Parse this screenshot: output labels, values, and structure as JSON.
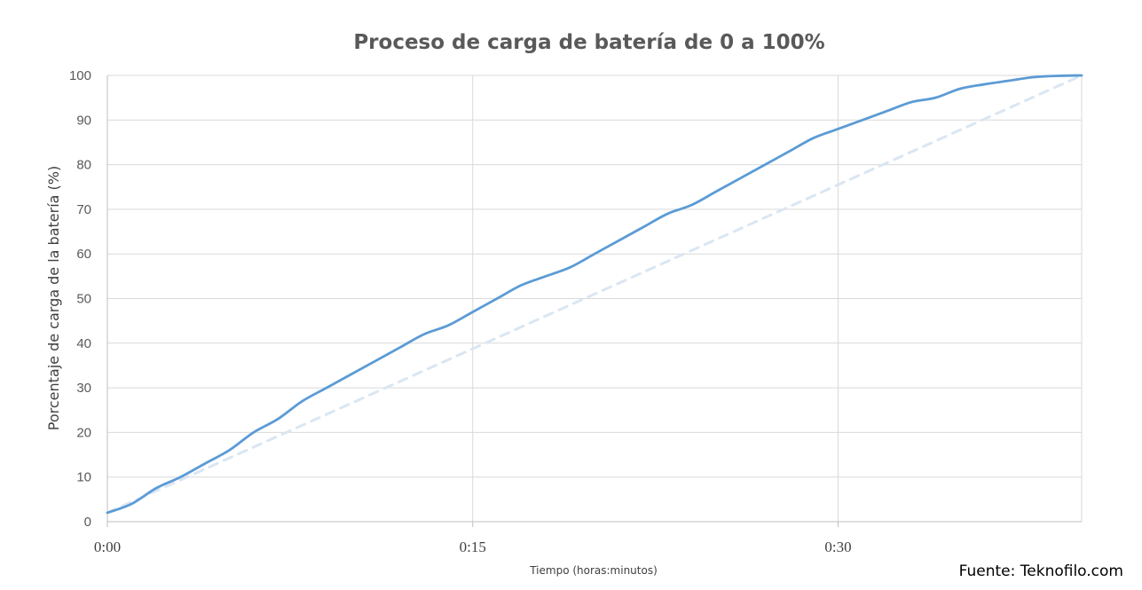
{
  "chart_data": {
    "type": "line",
    "title": "Proceso de carga de batería de 0 a 100%",
    "xlabel": "Tiempo (horas:minutos)",
    "ylabel": "Porcentaje de carga de la batería (%)",
    "x_unit": "minutes",
    "xlim": [
      0,
      40
    ],
    "ylim": [
      0,
      100
    ],
    "x_ticks": [
      0,
      15,
      30
    ],
    "x_tick_labels": [
      "0:00",
      "0:15",
      "0:30"
    ],
    "y_ticks": [
      0,
      10,
      20,
      30,
      40,
      50,
      60,
      70,
      80,
      90,
      100
    ],
    "y_tick_labels": [
      "0",
      "10",
      "20",
      "30",
      "40",
      "50",
      "60",
      "70",
      "80",
      "90",
      "100"
    ],
    "grid": true,
    "series": [
      {
        "style": "solid",
        "color": "#5b9bd5",
        "x": [
          0,
          1,
          2,
          3,
          4,
          5,
          6,
          7,
          8,
          9,
          10,
          11,
          12,
          13,
          14,
          15,
          16,
          17,
          18,
          19,
          20,
          21,
          22,
          23,
          24,
          25,
          26,
          27,
          28,
          29,
          30,
          31,
          32,
          33,
          34,
          35,
          36,
          37,
          38,
          39,
          40
        ],
        "y": [
          2,
          4,
          7.5,
          10,
          13,
          16,
          20,
          23,
          27,
          30,
          33,
          36,
          39,
          42,
          44,
          47,
          50,
          53,
          55,
          57,
          60,
          63,
          66,
          69,
          71,
          74,
          77,
          80,
          83,
          86,
          88,
          90,
          92,
          94,
          95,
          97,
          98,
          98.8,
          99.6,
          99.9,
          100
        ]
      },
      {
        "style": "dashed",
        "color": "#dae6f3",
        "x": [
          0,
          40
        ],
        "y": [
          2,
          100
        ]
      }
    ],
    "source_note": "Fuente: Teknofilo.com"
  },
  "colors": {
    "axis": "#bfbfbf",
    "grid": "#d9d9d9",
    "text": "#595959"
  }
}
